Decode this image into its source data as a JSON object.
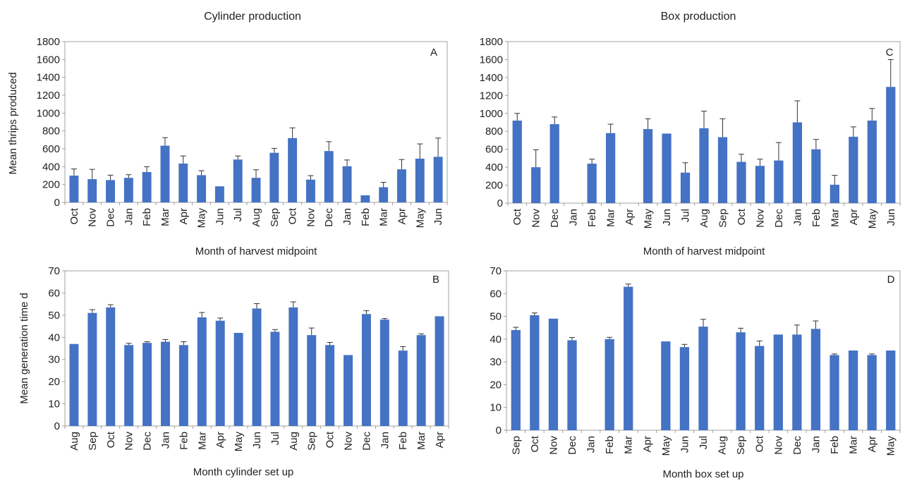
{
  "column_titles": [
    "Cylinder production",
    "Box production"
  ],
  "chart_data": [
    {
      "id": "A",
      "type": "bar",
      "panel_label": "A",
      "title": "",
      "xlabel": "Month of harvest midpoint",
      "ylabel": "Mean thrips produced",
      "ylim": [
        0,
        1800
      ],
      "yticks": [
        0,
        200,
        400,
        600,
        800,
        1000,
        1200,
        1400,
        1600,
        1800
      ],
      "grid": false,
      "bar_color": "#4472C4",
      "categories": [
        "Oct",
        "Nov",
        "Dec",
        "Jan",
        "Feb",
        "Mar",
        "Apr",
        "May",
        "Jun",
        "Jul",
        "Aug",
        "Sep",
        "Oct",
        "Nov",
        "Dec",
        "Jan",
        "Feb",
        "Mar",
        "Apr",
        "May",
        "Jun"
      ],
      "values": [
        300,
        260,
        250,
        275,
        340,
        635,
        435,
        305,
        180,
        480,
        275,
        555,
        720,
        255,
        575,
        405,
        80,
        170,
        370,
        490,
        510
      ],
      "errors": [
        75,
        110,
        55,
        35,
        60,
        90,
        85,
        50,
        0,
        40,
        90,
        50,
        115,
        45,
        105,
        70,
        0,
        55,
        110,
        165,
        210
      ]
    },
    {
      "id": "C",
      "type": "bar",
      "panel_label": "C",
      "title": "",
      "xlabel": "Month of harvest midpoint",
      "ylabel": "",
      "ylim": [
        0,
        1800
      ],
      "yticks": [
        0,
        200,
        400,
        600,
        800,
        1000,
        1200,
        1400,
        1600,
        1800
      ],
      "grid": false,
      "bar_color": "#4472C4",
      "categories": [
        "Oct",
        "Nov",
        "Dec",
        "Jan",
        "Feb",
        "Mar",
        "Apr",
        "May",
        "Jun",
        "Jul",
        "Aug",
        "Sep",
        "Oct",
        "Nov",
        "Dec",
        "Jan",
        "Feb",
        "Mar",
        "Apr",
        "May",
        "Jun"
      ],
      "values": [
        920,
        400,
        880,
        0,
        440,
        780,
        0,
        825,
        775,
        340,
        835,
        735,
        460,
        415,
        475,
        900,
        600,
        205,
        740,
        920,
        1295
      ],
      "errors": [
        80,
        195,
        80,
        0,
        50,
        100,
        0,
        115,
        0,
        110,
        190,
        205,
        85,
        75,
        200,
        240,
        110,
        105,
        110,
        135,
        305
      ]
    },
    {
      "id": "B",
      "type": "bar",
      "panel_label": "B",
      "title": "",
      "xlabel": "Month cylinder set up",
      "ylabel": "Mean generation time d",
      "ylim": [
        0,
        70
      ],
      "yticks": [
        0,
        10,
        20,
        30,
        40,
        50,
        60,
        70
      ],
      "grid": false,
      "bar_color": "#4472C4",
      "categories": [
        "Aug",
        "Sep",
        "Oct",
        "Nov",
        "Dec",
        "Jan",
        "Feb",
        "Mar",
        "Apr",
        "May",
        "Jun",
        "Jul",
        "Aug",
        "Sep",
        "Oct",
        "Nov",
        "Dec",
        "Jan",
        "Feb",
        "Mar",
        "Apr"
      ],
      "values": [
        37,
        51,
        53.5,
        36.5,
        37.5,
        38,
        36.5,
        49,
        47.5,
        42,
        53,
        42.5,
        53.5,
        41,
        36.5,
        32,
        50.5,
        48,
        34,
        41,
        49.5
      ],
      "errors": [
        0,
        1.5,
        1.2,
        0.8,
        0.5,
        1,
        1.5,
        2.2,
        1.2,
        0,
        2.2,
        1,
        2.5,
        3.2,
        1.2,
        0,
        1.5,
        0.5,
        1.8,
        0.6,
        0
      ]
    },
    {
      "id": "D",
      "type": "bar",
      "panel_label": "D",
      "title": "",
      "xlabel": "Month box set up",
      "ylabel": "",
      "ylim": [
        0,
        70
      ],
      "yticks": [
        0,
        10,
        20,
        30,
        40,
        50,
        60,
        70
      ],
      "grid": false,
      "bar_color": "#4472C4",
      "categories": [
        "Sep",
        "Oct",
        "Nov",
        "Dec",
        "Jan",
        "Feb",
        "Mar",
        "Apr",
        "May",
        "Jun",
        "Jul",
        "Aug",
        "Sep",
        "Oct",
        "Nov",
        "Dec",
        "Jan",
        "Feb",
        "Mar",
        "Apr",
        "May"
      ],
      "values": [
        44,
        50.5,
        49,
        39.5,
        0,
        40,
        63,
        0,
        39,
        36.5,
        45.5,
        0,
        43,
        37,
        42,
        42,
        44.5,
        33,
        35,
        33,
        35
      ],
      "errors": [
        1.2,
        1,
        0,
        1.2,
        0,
        0.8,
        1.2,
        0,
        0,
        1.2,
        3.2,
        0,
        1.8,
        2.2,
        0,
        4.2,
        3.5,
        0.5,
        0,
        0.5,
        0
      ]
    }
  ]
}
